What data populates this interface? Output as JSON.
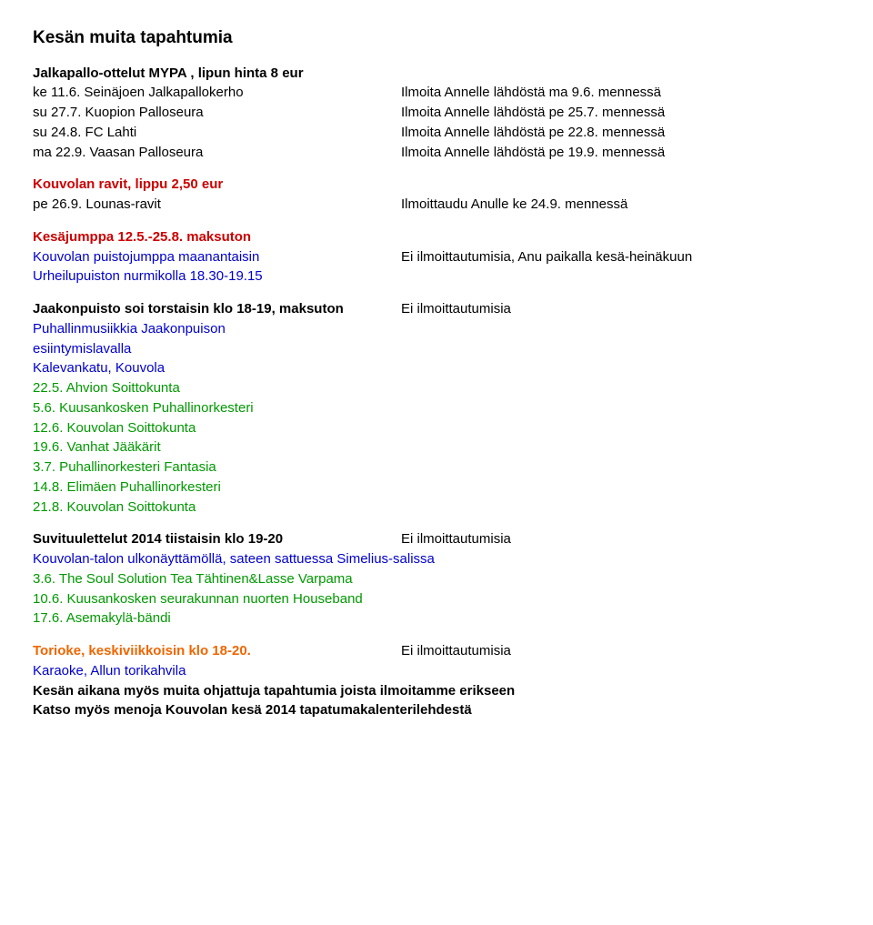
{
  "title": "Kesän muita tapahtumia",
  "football": {
    "header": "Jalkapallo-ottelut MYPA , lipun hinta 8 eur",
    "rows": [
      {
        "left": "ke 11.6. Seinäjoen Jalkapallokerho",
        "right": "Ilmoita Annelle lähdöstä ma 9.6. mennessä"
      },
      {
        "left": "su 27.7. Kuopion Palloseura",
        "right": "Ilmoita Annelle lähdöstä pe 25.7. mennessä"
      },
      {
        "left": "su 24.8. FC Lahti",
        "right": "Ilmoita Annelle lähdöstä pe 22.8. mennessä"
      },
      {
        "left": "ma 22.9. Vaasan Palloseura",
        "right": "Ilmoita Annelle lähdöstä pe 19.9. mennessä"
      }
    ]
  },
  "ravit": {
    "header": "Kouvolan ravit, lippu 2,50 eur",
    "left": "pe 26.9. Lounas-ravit",
    "right": "Ilmoittaudu Anulle ke 24.9. mennessä"
  },
  "kesajumppa": {
    "header": "Kesäjumppa 12.5.-25.8. maksuton",
    "line1_left": "Kouvolan puistojumppa maanantaisin",
    "line1_right": "Ei ilmoittautumisia, Anu paikalla kesä-heinäkuun",
    "line2": "Urheilupuiston nurmikolla 18.30-19.15"
  },
  "jaakonpuisto": {
    "header_left": "Jaakonpuisto soi torstaisin klo 18-19, maksuton",
    "header_right": "Ei ilmoittautumisia",
    "sub1": "Puhallinmusiikkia Jaakonpuison",
    "sub2": "esiintymislavalla",
    "sub3": "Kalevankatu, Kouvola",
    "items": [
      "22.5. Ahvion Soittokunta",
      "5.6. Kuusankosken Puhallinorkesteri",
      "12.6. Kouvolan Soittokunta",
      "19.6. Vanhat Jääkärit",
      "3.7. Puhallinorkesteri Fantasia",
      "14.8. Elimäen Puhallinorkesteri",
      "21.8. Kouvolan Soittokunta"
    ]
  },
  "suvituulettelut": {
    "header_left": "Suvituulettelut 2014 tiistaisin klo 19-20",
    "header_right": "Ei ilmoittautumisia",
    "sub": "Kouvolan-talon ulkonäyttämöllä, sateen sattuessa Simelius-salissa",
    "items": [
      "3.6. The Soul Solution Tea Tähtinen&Lasse Varpama",
      "10.6. Kuusankosken seurakunnan nuorten Houseband",
      "17.6. Asemakylä-bändi"
    ]
  },
  "torioke": {
    "header_left": "Torioke, keskiviikkoisin klo 18-20.",
    "header_right": "Ei ilmoittautumisia",
    "sub": "Karaoke, Allun torikahvila",
    "note1": "Kesän aikana myös muita ohjattuja tapahtumia joista ilmoitamme erikseen",
    "note2": "Katso myös menoja Kouvolan kesä 2014 tapatumakalenterilehdestä"
  }
}
